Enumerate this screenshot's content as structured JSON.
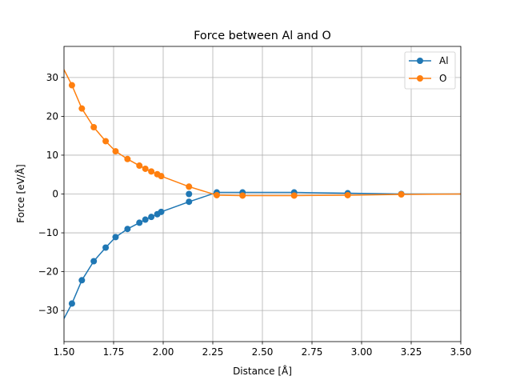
{
  "chart_data": {
    "type": "line",
    "title": "Force between Al and O",
    "xlabel": "Distance [Å]",
    "ylabel": "Force [eV/Å]",
    "xlim": [
      1.5,
      3.5
    ],
    "ylim": [
      -38,
      38
    ],
    "xticks": [
      1.5,
      1.75,
      2.0,
      2.25,
      2.5,
      2.75,
      3.0,
      3.25,
      3.5
    ],
    "xtick_labels": [
      "1.50",
      "1.75",
      "2.00",
      "2.25",
      "2.50",
      "2.75",
      "3.00",
      "3.25",
      "3.50"
    ],
    "yticks": [
      -30,
      -20,
      -10,
      0,
      10,
      20,
      30
    ],
    "ytick_labels": [
      "−30",
      "−20",
      "−10",
      "0",
      "10",
      "20",
      "30"
    ],
    "grid": true,
    "legend": "top-right",
    "series": [
      {
        "name": "Al",
        "color": "#1f77b4",
        "x": [
          1.48,
          1.54,
          1.59,
          1.65,
          1.71,
          1.76,
          1.82,
          1.88,
          1.91,
          1.94,
          1.97,
          1.99,
          2.13,
          2.27,
          2.4,
          2.66,
          2.93,
          3.2,
          3.52
        ],
        "y": [
          -34.0,
          -28.2,
          -22.2,
          -17.3,
          -13.8,
          -11.1,
          -9.0,
          -7.4,
          -6.6,
          -5.9,
          -5.2,
          -4.6,
          -2.0,
          0.4,
          0.4,
          0.4,
          0.2,
          0.0,
          0.0
        ]
      },
      {
        "name": "O",
        "color": "#ff7f0e",
        "x": [
          1.48,
          1.54,
          1.59,
          1.65,
          1.71,
          1.76,
          1.82,
          1.88,
          1.91,
          1.94,
          1.97,
          1.99,
          2.13,
          2.27,
          2.4,
          2.66,
          2.93,
          3.2,
          3.52
        ],
        "y": [
          34.0,
          28.0,
          22.0,
          17.2,
          13.6,
          11.0,
          9.0,
          7.3,
          6.5,
          5.8,
          5.1,
          4.6,
          1.9,
          -0.3,
          -0.4,
          -0.4,
          -0.3,
          -0.1,
          0.0
        ]
      },
      {
        "name": "",
        "color": "#1f77b4",
        "x": [
          2.13
        ],
        "y": [
          0.0
        ]
      }
    ]
  }
}
